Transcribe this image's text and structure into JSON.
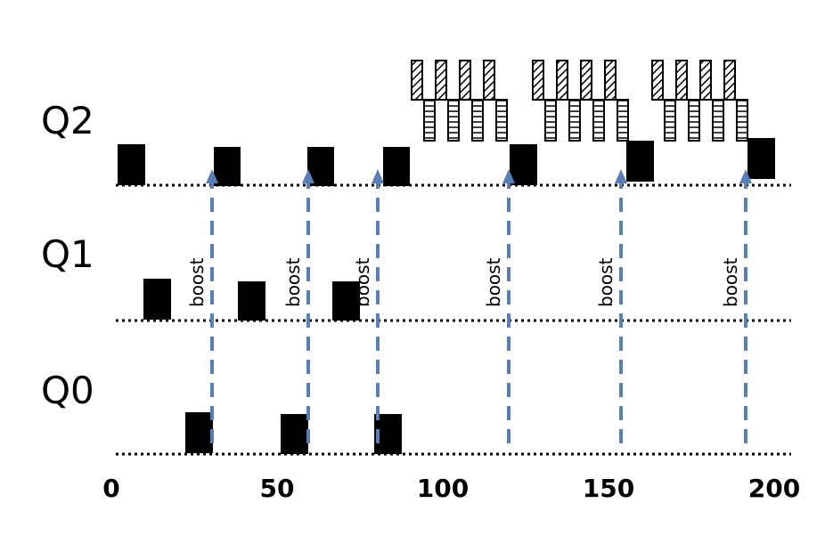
{
  "queues": [
    {
      "id": "q2",
      "label": "Q2"
    },
    {
      "id": "q1",
      "label": "Q1"
    },
    {
      "id": "q0",
      "label": "Q0"
    }
  ],
  "axis": {
    "min": 0,
    "max": 200,
    "ticks": [
      "0",
      "50",
      "100",
      "150",
      "200"
    ]
  },
  "boost_label": "boost",
  "colors": {
    "job": "#000000",
    "boost_arrow": "#5a7fb5",
    "baseline": "#000000"
  },
  "chart_data": {
    "type": "timeline",
    "xlim": [
      0,
      200
    ],
    "x_tick_labels": [
      "0",
      "50",
      "100",
      "150",
      "200"
    ],
    "lanes": [
      "Q2",
      "Q1",
      "Q0"
    ],
    "long_job_runs": [
      {
        "queue": "Q2",
        "start": 2,
        "end": 11
      },
      {
        "queue": "Q1",
        "start": 10,
        "end": 19
      },
      {
        "queue": "Q0",
        "start": 22,
        "end": 31
      },
      {
        "queue": "Q2",
        "start": 31,
        "end": 40
      },
      {
        "queue": "Q1",
        "start": 40,
        "end": 49
      },
      {
        "queue": "Q0",
        "start": 51,
        "end": 60
      },
      {
        "queue": "Q2",
        "start": 60,
        "end": 69
      },
      {
        "queue": "Q1",
        "start": 68,
        "end": 77
      },
      {
        "queue": "Q0",
        "start": 80,
        "end": 89
      },
      {
        "queue": "Q2",
        "start": 83,
        "end": 92
      },
      {
        "queue": "Q2",
        "start": 122,
        "end": 131
      },
      {
        "queue": "Q2",
        "start": 158,
        "end": 167
      },
      {
        "queue": "Q2",
        "start": 195,
        "end": 204
      }
    ],
    "boosts": [
      30,
      59,
      80,
      121,
      155,
      193
    ],
    "interactive_bursts": [
      {
        "queue": "Q2",
        "start": 92,
        "end": 122
      },
      {
        "queue": "Q2",
        "start": 129,
        "end": 158
      },
      {
        "queue": "Q2",
        "start": 165,
        "end": 195
      }
    ],
    "legend": null
  }
}
